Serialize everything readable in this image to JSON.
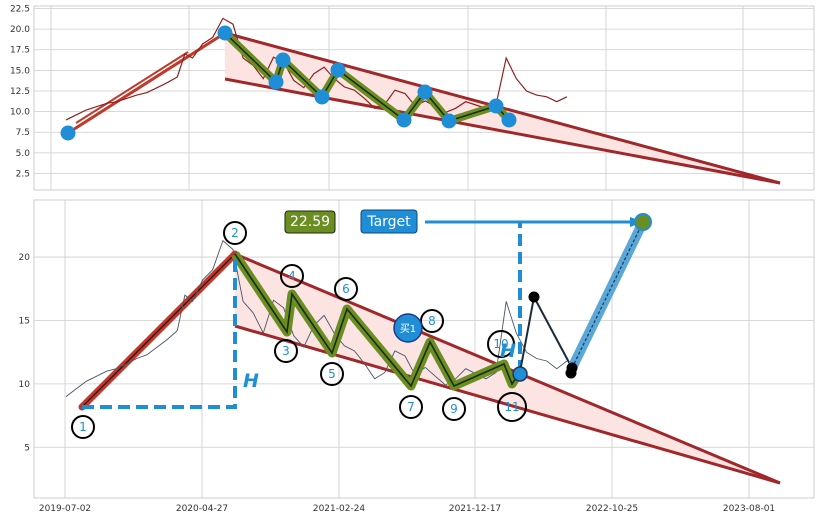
{
  "colors": {
    "background": "#ffffff",
    "plot_bg": "#eaeaf2",
    "grid": "#cccccc",
    "price_top": "#8b2323",
    "price_bottom": "#4a5568",
    "trend": "#a0282a",
    "channel_fill": "#fbe4e1",
    "zigzag_fill": "#6b8e23",
    "zigzag_core": "#1c2a0d",
    "up_leg": "#c0392b",
    "marker_blue": "#1f8ed6",
    "label_green": "#6b8e23",
    "target_blue": "#1f8ed6",
    "black_point": "#000000"
  },
  "chart_data": [
    {
      "type": "line",
      "id": "top",
      "ylim": [
        0.5,
        22.8
      ],
      "yticks": [
        "2.5",
        "5.0",
        "7.5",
        "10.0",
        "12.5",
        "15.0",
        "17.5",
        "20.0",
        "22.5"
      ],
      "ytick_values": [
        2.5,
        5.0,
        7.5,
        10.0,
        12.5,
        15.0,
        17.5,
        20.0,
        22.5
      ],
      "grid": true,
      "series": [
        {
          "kind": "price",
          "x": [
            0.0,
            0.02,
            0.04,
            0.06,
            0.08,
            0.1,
            0.12,
            0.14,
            0.16,
            0.18,
            0.2,
            0.22,
            0.235,
            0.25,
            0.27,
            0.29,
            0.31,
            0.33,
            0.35,
            0.37,
            0.39,
            0.41,
            0.43,
            0.45,
            0.47,
            0.49,
            0.51,
            0.53,
            0.55,
            0.57,
            0.59,
            0.61,
            0.63,
            0.65,
            0.67,
            0.69,
            0.71,
            0.73,
            0.75,
            0.77,
            0.79,
            0.81,
            0.83,
            0.85,
            0.87,
            0.89,
            0.91,
            0.93,
            0.95,
            0.97,
            0.99
          ],
          "y": [
            9.0,
            9.6,
            10.2,
            10.6,
            11.0,
            11.2,
            11.6,
            12.0,
            12.3,
            12.9,
            13.5,
            14.2,
            17.0,
            16.5,
            18.2,
            19.0,
            21.3,
            20.6,
            16.5,
            15.6,
            14.0,
            16.6,
            16.0,
            13.8,
            12.9,
            14.6,
            15.4,
            14.0,
            13.0,
            12.6,
            11.6,
            10.4,
            10.9,
            12.6,
            12.2,
            10.7,
            11.3,
            10.6,
            9.9,
            10.4,
            11.2,
            10.8,
            10.4,
            10.9,
            16.5,
            14.0,
            12.5,
            12.0,
            11.8,
            11.2,
            11.8
          ]
        }
      ]
    },
    {
      "type": "line",
      "id": "bottom",
      "ylim": [
        1.0,
        24.5
      ],
      "yticks": [
        "5",
        "10",
        "15",
        "20"
      ],
      "ytick_values": [
        5,
        10,
        15,
        20
      ],
      "xticks": [
        "2019-07-02",
        "2020-04-27",
        "2021-02-24",
        "2021-12-17",
        "2022-10-25",
        "2023-08-01"
      ],
      "grid": true,
      "series": [
        {
          "kind": "price",
          "x": [
            0.0,
            0.02,
            0.04,
            0.06,
            0.08,
            0.1,
            0.12,
            0.14,
            0.16,
            0.18,
            0.2,
            0.22,
            0.235,
            0.25,
            0.27,
            0.29,
            0.31,
            0.33,
            0.35,
            0.37,
            0.39,
            0.41,
            0.43,
            0.45,
            0.47,
            0.49,
            0.51,
            0.53,
            0.55,
            0.57,
            0.59,
            0.61,
            0.63,
            0.65,
            0.67,
            0.69,
            0.71,
            0.73,
            0.75,
            0.77,
            0.79,
            0.81,
            0.83,
            0.85,
            0.87,
            0.89,
            0.91,
            0.93,
            0.95,
            0.97,
            0.99
          ],
          "y": [
            9.0,
            9.6,
            10.2,
            10.6,
            11.0,
            11.2,
            11.6,
            12.0,
            12.3,
            12.9,
            13.5,
            14.2,
            17.0,
            16.5,
            18.2,
            19.0,
            21.3,
            20.6,
            16.5,
            15.6,
            14.0,
            16.6,
            16.0,
            13.8,
            12.9,
            14.6,
            15.4,
            14.0,
            13.0,
            12.6,
            11.6,
            10.4,
            10.9,
            12.6,
            12.2,
            10.7,
            11.3,
            10.6,
            9.9,
            10.4,
            11.2,
            10.8,
            10.4,
            10.9,
            16.5,
            14.0,
            12.5,
            12.0,
            11.8,
            11.2,
            11.8
          ]
        }
      ],
      "labels": {
        "buy": "买1",
        "price_box": "22.59",
        "target_box": "Target",
        "h_label": "H",
        "wave_labels": [
          "1",
          "2",
          "3",
          "4",
          "5",
          "6",
          "7",
          "8",
          "9",
          "10",
          "11"
        ]
      },
      "target_value": 22.59,
      "wave_points": [
        {
          "label": "1",
          "value": 8.0
        },
        {
          "label": "2",
          "value": 20.0
        },
        {
          "label": "3",
          "value": 14.0
        },
        {
          "label": "4",
          "value": 16.8
        },
        {
          "label": "5",
          "value": 12.3
        },
        {
          "label": "6",
          "value": 15.6
        },
        {
          "label": "7",
          "value": 9.6
        },
        {
          "label": "8",
          "value": 13.0
        },
        {
          "label": "9",
          "value": 9.5
        },
        {
          "label": "10",
          "value": 11.3
        },
        {
          "label": "11",
          "value": 9.6
        }
      ]
    }
  ]
}
